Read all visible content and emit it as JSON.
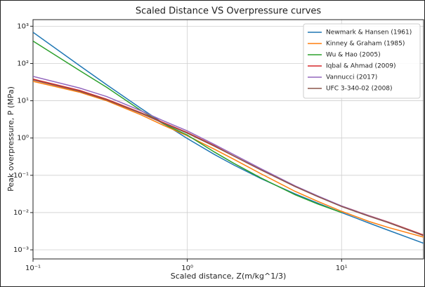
{
  "chart_data": {
    "type": "line",
    "title": "Scaled Distance VS Overpressure curves",
    "x_label": "Scaled distance, Z(m/kg^1/3)",
    "y_label": "Peak overpressure, P (MPa)",
    "log_x": true,
    "log_y": true,
    "grid": true,
    "legend": "upper right",
    "xlim": [
      0.1,
      34
    ],
    "ylim": [
      0.00057,
      1500
    ],
    "xticks": [
      {
        "value": 0.1,
        "label": "10⁻¹"
      },
      {
        "value": 1,
        "label": "10⁰"
      },
      {
        "value": 10,
        "label": "10¹"
      }
    ],
    "yticks": [
      {
        "value": 0.001,
        "label": "10⁻³"
      },
      {
        "value": 0.01,
        "label": "10⁻²"
      },
      {
        "value": 0.1,
        "label": "10⁻¹"
      },
      {
        "value": 1,
        "label": "10⁰"
      },
      {
        "value": 10,
        "label": "10¹"
      },
      {
        "value": 100,
        "label": "10²"
      },
      {
        "value": 1000,
        "label": "10³"
      }
    ],
    "x": [
      0.1,
      0.2,
      0.3,
      0.5,
      0.7,
      1,
      1.5,
      2,
      3,
      5,
      7,
      10,
      15,
      20,
      34
    ],
    "series": [
      {
        "name": "Newmark & Hansen (1961)",
        "color": "#1f77b4",
        "values": [
          687,
          88.1,
          26.9,
          6.26,
          2.48,
          0.97,
          0.361,
          0.189,
          0.0817,
          0.0317,
          0.0179,
          0.01,
          0.00526,
          0.00337,
          0.0015
        ]
      },
      {
        "name": "Kinney & Graham (1985)",
        "color": "#ff7f0e",
        "values": [
          33,
          17,
          10,
          4.2,
          2.2,
          1.15,
          0.5,
          0.27,
          0.11,
          0.037,
          0.02,
          0.0108,
          0.0058,
          0.004,
          0.0022
        ]
      },
      {
        "name": "Wu & Hao (2005)",
        "color": "#2ca02c",
        "values": [
          400,
          65,
          23,
          5.5,
          2.4,
          1.2,
          0.42,
          0.21,
          0.085,
          0.03,
          0.017,
          0.01,
          null,
          null,
          null
        ]
      },
      {
        "name": "Iqbal & Ahmad (2009)",
        "color": "#d62728",
        "values": [
          38,
          19,
          11,
          4.8,
          2.6,
          1.4,
          0.62,
          0.33,
          0.14,
          0.05,
          0.027,
          0.015,
          0.0083,
          0.0056,
          0.0025
        ]
      },
      {
        "name": "Vannucci (2017)",
        "color": "#9467bd",
        "values": [
          45,
          22,
          13,
          5.4,
          2.9,
          1.55,
          0.67,
          0.36,
          0.15,
          0.052,
          0.028,
          0.015,
          0.0082,
          0.0055,
          0.0024
        ]
      },
      {
        "name": "UFC 3-340-02 (2008)",
        "color": "#8c564b",
        "values": [
          36,
          18,
          10.5,
          4.6,
          2.5,
          1.35,
          0.6,
          0.33,
          0.14,
          0.05,
          0.027,
          0.0145,
          0.008,
          0.0054,
          0.0024
        ]
      }
    ]
  }
}
